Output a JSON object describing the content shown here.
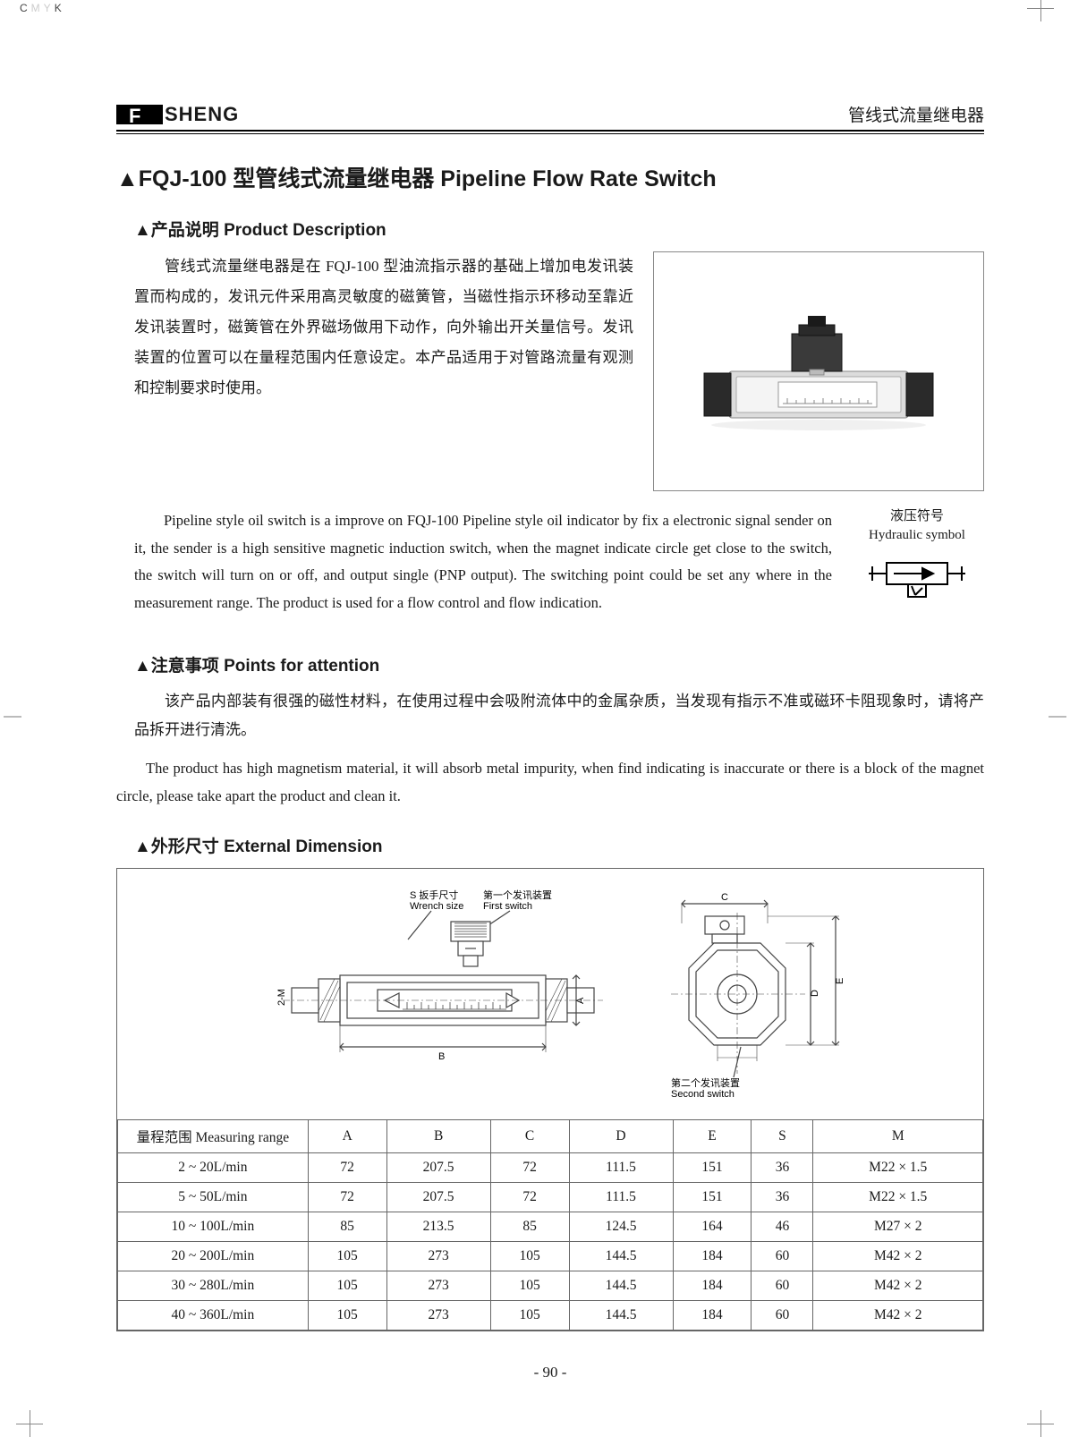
{
  "cmyk": {
    "c": "C",
    "m": "M",
    "y": "Y",
    "k": "K"
  },
  "header": {
    "brand_text": "SHENG",
    "brand_f": "F",
    "right_text": "管线式流量继电器"
  },
  "title": "▲FQJ-100 型管线式流量继电器 Pipeline Flow Rate Switch",
  "sections": {
    "product_desc_heading": "▲产品说明  Product Description",
    "attention_heading": "▲注意事项 Points for attention",
    "dimension_heading": "▲外形尺寸  External Dimension"
  },
  "product_desc_cn": "管线式流量继电器是在 FQJ-100 型油流指示器的基础上增加电发讯装置而构成的，发讯元件采用高灵敏度的磁簧管，当磁性指示环移动至靠近发讯装置时，磁簧管在外界磁场做用下动作，向外输出开关量信号。发讯装置的位置可以在量程范围内任意设定。本产品适用于对管路流量有观测和控制要求时使用。",
  "product_desc_en": "Pipeline style oil switch is a improve on FQJ-100 Pipeline style oil indicator by fix a electronic signal sender on it, the sender is a high sensitive magnetic induction switch, when the magnet indicate circle get close to the switch, the switch will turn on or off, and output single  (PNP output). The switching point could be set any where in the measurement range. The product is used for a flow control and flow indication.",
  "hydraulic": {
    "label_cn": "液压符号",
    "label_en": "Hydraulic symbol"
  },
  "attention_cn": "该产品内部装有很强的磁性材料，在使用过程中会吸附流体中的金属杂质，当发现有指示不准或磁环卡阻现象时，请将产品拆开进行清洗。",
  "attention_en": "The product has high magnetism material, it will absorb metal impurity, when find indicating is inaccurate or there is a block of the magnet circle, please take apart the product and clean it.",
  "diagram_labels": {
    "wrench_cn": "S 扳手尺寸",
    "wrench_en": "Wrench size",
    "first_cn": "第一个发讯装置",
    "first_en": "First switch",
    "second_cn": "第二个发讯装置",
    "second_en": "Second switch",
    "dim_a": "A",
    "dim_b": "B",
    "dim_c": "C",
    "dim_d": "D",
    "dim_e": "E",
    "thread": "2-M"
  },
  "dim_table": {
    "columns": [
      "量程范围 Measuring range",
      "A",
      "B",
      "C",
      "D",
      "E",
      "S",
      "M"
    ],
    "rows": [
      [
        "2 ~ 20L/min",
        "72",
        "207.5",
        "72",
        "111.5",
        "151",
        "36",
        "M22 × 1.5"
      ],
      [
        "5 ~ 50L/min",
        "72",
        "207.5",
        "72",
        "111.5",
        "151",
        "36",
        "M22 × 1.5"
      ],
      [
        "10 ~ 100L/min",
        "85",
        "213.5",
        "85",
        "124.5",
        "164",
        "46",
        "M27 × 2"
      ],
      [
        "20 ~ 200L/min",
        "105",
        "273",
        "105",
        "144.5",
        "184",
        "60",
        "M42 × 2"
      ],
      [
        "30 ~ 280L/min",
        "105",
        "273",
        "105",
        "144.5",
        "184",
        "60",
        "M42 × 2"
      ],
      [
        "40 ~ 360L/min",
        "105",
        "273",
        "105",
        "144.5",
        "184",
        "60",
        "M42 × 2"
      ]
    ]
  },
  "page_number": "- 90 -",
  "colors": {
    "text": "#1a1a1a",
    "rule": "#000000",
    "box_border": "#888888",
    "table_border": "#666666",
    "diagram_stroke": "#444444",
    "diagram_fill": "#e8e8e8"
  }
}
